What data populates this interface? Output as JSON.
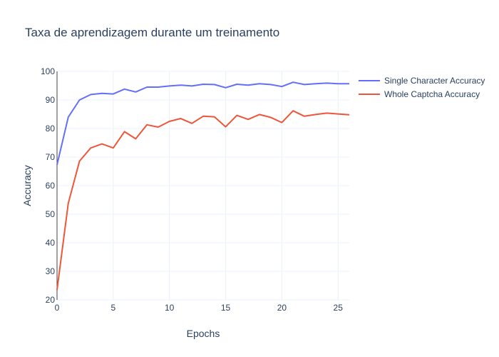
{
  "chart_data": {
    "type": "line",
    "title": "Taxa de aprendizagem durante um treinamento",
    "xlabel": "Epochs",
    "ylabel": "Accuracy",
    "xlim": [
      0,
      26
    ],
    "ylim": [
      20,
      100
    ],
    "x_ticks": [
      0,
      5,
      10,
      15,
      20,
      25
    ],
    "y_ticks": [
      20,
      30,
      40,
      50,
      60,
      70,
      80,
      90,
      100
    ],
    "grid": true,
    "legend_position": "top-right",
    "x": [
      0,
      1,
      2,
      3,
      4,
      5,
      6,
      7,
      8,
      9,
      10,
      11,
      12,
      13,
      14,
      15,
      16,
      17,
      18,
      19,
      20,
      21,
      22,
      23,
      24,
      25,
      26
    ],
    "series": [
      {
        "name": "Single Character Accuracy",
        "color": "#636efa",
        "values": [
          67.3,
          84.0,
          90.0,
          91.9,
          92.3,
          92.1,
          93.8,
          92.8,
          94.5,
          94.5,
          94.9,
          95.2,
          94.9,
          95.5,
          95.4,
          94.3,
          95.5,
          95.2,
          95.7,
          95.4,
          94.7,
          96.2,
          95.4,
          95.7,
          95.9,
          95.7,
          95.7
        ]
      },
      {
        "name": "Whole Captcha Accuracy",
        "color": "#ef553b",
        "values": [
          23.5,
          53.8,
          68.6,
          73.2,
          74.6,
          73.2,
          78.9,
          76.4,
          81.3,
          80.5,
          82.5,
          83.5,
          81.8,
          84.3,
          84.1,
          80.6,
          84.6,
          83.2,
          84.9,
          83.9,
          82.1,
          86.2,
          84.3,
          84.9,
          85.4,
          85.1,
          84.8
        ]
      }
    ]
  }
}
